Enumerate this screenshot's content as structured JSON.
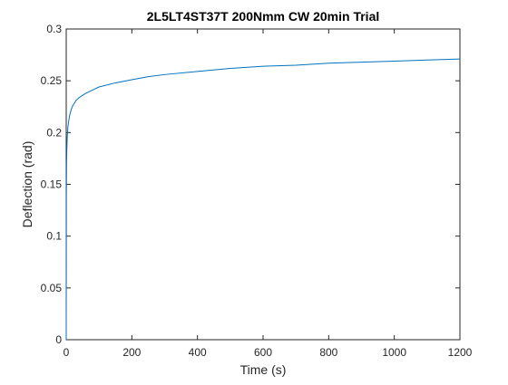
{
  "chart_data": {
    "type": "line",
    "title": "2L5LT4ST37T 200Nmm CW 20min Trial",
    "xlabel": "Time (s)",
    "ylabel": "Deflection (rad)",
    "xlim": [
      0,
      1200
    ],
    "ylim": [
      0,
      0.3
    ],
    "xticks": [
      0,
      200,
      400,
      600,
      800,
      1000,
      1200
    ],
    "xtick_labels": [
      "0",
      "200",
      "400",
      "600",
      "800",
      "1000",
      "1200"
    ],
    "yticks": [
      0,
      0.05,
      0.1,
      0.15,
      0.2,
      0.25,
      0.3
    ],
    "ytick_labels": [
      "0",
      "0.05",
      "0.1",
      "0.15",
      "0.2",
      "0.25",
      "0.3"
    ],
    "grid": false,
    "line_color": "#0072bd",
    "series": [
      {
        "x": [
          0,
          0.5,
          1,
          2,
          3,
          5,
          8,
          10,
          15,
          20,
          30,
          40,
          50,
          60,
          80,
          100,
          150,
          200,
          250,
          300,
          400,
          500,
          600,
          700,
          800,
          900,
          1000,
          1100,
          1200
        ],
        "values": [
          0,
          0.14,
          0.17,
          0.185,
          0.195,
          0.205,
          0.212,
          0.216,
          0.222,
          0.226,
          0.231,
          0.234,
          0.236,
          0.238,
          0.241,
          0.244,
          0.248,
          0.251,
          0.254,
          0.256,
          0.259,
          0.262,
          0.264,
          0.265,
          0.267,
          0.268,
          0.269,
          0.27,
          0.271
        ]
      }
    ]
  }
}
